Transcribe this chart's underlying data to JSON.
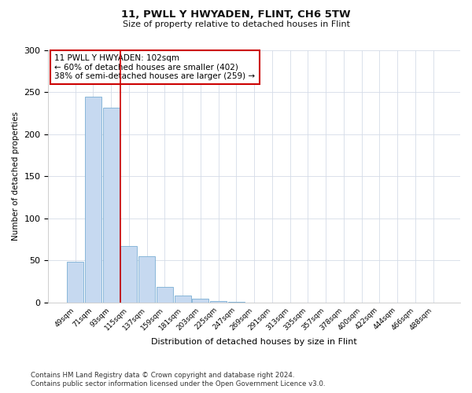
{
  "title": "11, PWLL Y HWYADEN, FLINT, CH6 5TW",
  "subtitle": "Size of property relative to detached houses in Flint",
  "xlabel": "Distribution of detached houses by size in Flint",
  "ylabel": "Number of detached properties",
  "bar_labels": [
    "49sqm",
    "71sqm",
    "93sqm",
    "115sqm",
    "137sqm",
    "159sqm",
    "181sqm",
    "203sqm",
    "225sqm",
    "247sqm",
    "269sqm",
    "291sqm",
    "313sqm",
    "335sqm",
    "357sqm",
    "378sqm",
    "400sqm",
    "422sqm",
    "444sqm",
    "466sqm",
    "488sqm"
  ],
  "bar_values": [
    48,
    245,
    232,
    67,
    55,
    18,
    8,
    4,
    2,
    1,
    0,
    0,
    0,
    0,
    0,
    0,
    0,
    0,
    0,
    0,
    0
  ],
  "bar_color": "#c6d9f0",
  "bar_edge_color": "#7bafd4",
  "vline_x_index": 2.5,
  "vline_color": "#cc0000",
  "annotation_title": "11 PWLL Y HWYADEN: 102sqm",
  "annotation_line1": "← 60% of detached houses are smaller (402)",
  "annotation_line2": "38% of semi-detached houses are larger (259) →",
  "annotation_box_color": "#cc0000",
  "ylim": [
    0,
    300
  ],
  "yticks": [
    0,
    50,
    100,
    150,
    200,
    250,
    300
  ],
  "footnote1": "Contains HM Land Registry data © Crown copyright and database right 2024.",
  "footnote2": "Contains public sector information licensed under the Open Government Licence v3.0.",
  "bg_color": "#ffffff",
  "grid_color": "#d4dce8"
}
